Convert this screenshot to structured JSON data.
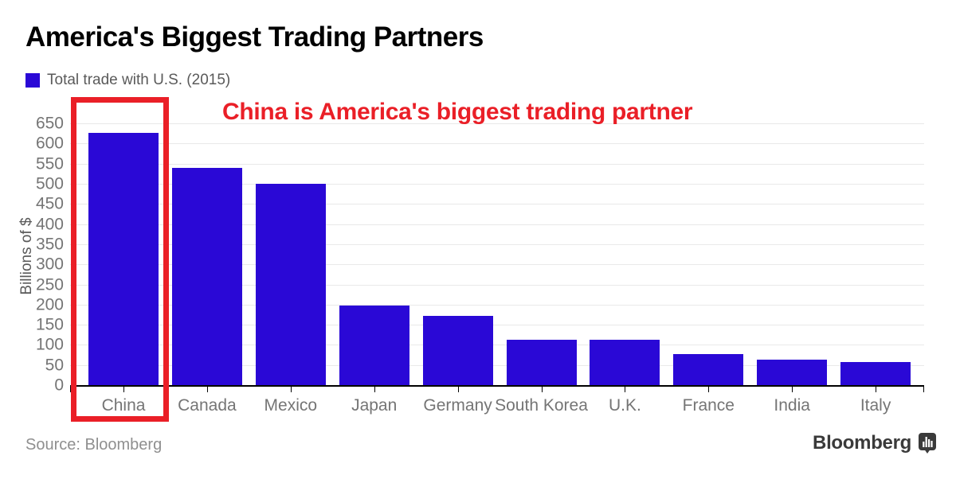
{
  "header": {
    "title": "America's Biggest Trading Partners",
    "legend": {
      "label": "Total trade with U.S. (2015)"
    }
  },
  "annotation": {
    "text": "China is America's biggest trading partner",
    "color": "#ea1f27"
  },
  "chart_data": {
    "type": "bar",
    "title": "America's Biggest Trading Partners",
    "legend_entries": [
      "Total trade with U.S. (2015)"
    ],
    "categories": [
      "China",
      "Canada",
      "Mexico",
      "Japan",
      "Germany",
      "South Korea",
      "U.K.",
      "France",
      "India",
      "Italy"
    ],
    "values": [
      627,
      540,
      500,
      197,
      172,
      113,
      113,
      77,
      63,
      57
    ],
    "xlabel": "",
    "ylabel": "Billions of $",
    "ylim": [
      0,
      650
    ],
    "yticks": [
      0,
      50,
      100,
      150,
      200,
      250,
      300,
      350,
      400,
      450,
      500,
      550,
      600,
      650
    ],
    "grid": true,
    "legend_position": "top-left",
    "bar_color": "#2a08d6",
    "highlight": {
      "category": "China",
      "box_color": "#ea1f27"
    }
  },
  "footer": {
    "source": "Source: Bloomberg",
    "logo_text": "Bloomberg",
    "logo_icon": "bar-chart-bubble-icon"
  },
  "colors": {
    "bar": "#2a08d6",
    "accent_red": "#ea1f27",
    "axis": "#000000",
    "grid": "#e9e9e9",
    "tick_label": "#757575",
    "muted_text": "#8f8f8f",
    "logo": "#3a3a3a"
  }
}
